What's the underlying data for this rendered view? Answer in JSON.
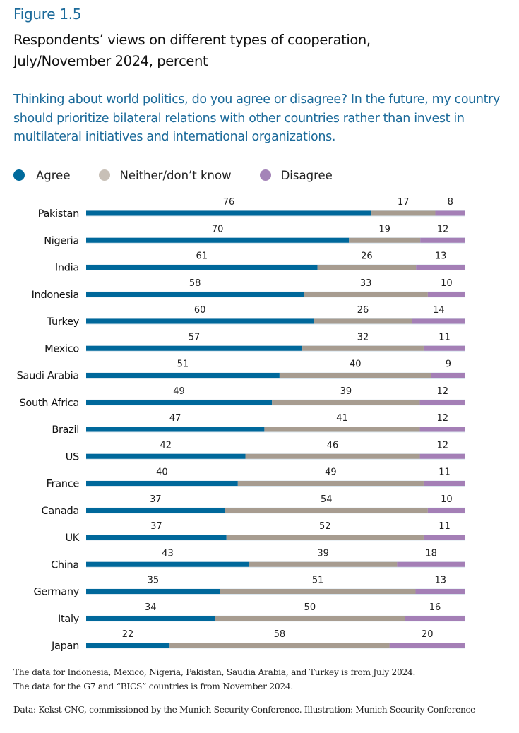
{
  "figure_label": "Figure 1.5",
  "title_line1": "Respondents’ views on different types of cooperation,",
  "title_line2": "July/November 2024, percent",
  "subtitle": "Thinking about world politics, do you agree or disagree? In the future, my country should prioritize bilateral relations with other countries rather than invest in multilateral initiatives and international organizations.",
  "notes_line1": "The data for Indonesia, Mexico, Nigeria, Pakistan, Saudia Arabia, and Turkey is from July 2024.",
  "notes_line2": "The data for the G7 and “BICS” countries is from November 2024.",
  "source": "Data: Kekst CNC, commissioned by the Munich Security Conference. Illustration: Munich Security Conference",
  "chart_data": {
    "type": "bar",
    "orientation": "horizontal",
    "stacked": true,
    "title": "Respondents’ views on different types of cooperation, July/November 2024, percent",
    "xlabel": "",
    "ylabel": "",
    "xlim": [
      0,
      100
    ],
    "grid": false,
    "legend_position": "top-left",
    "categories": [
      "Pakistan",
      "Nigeria",
      "India",
      "Indonesia",
      "Turkey",
      "Mexico",
      "Saudi Arabia",
      "South Africa",
      "Brazil",
      "US",
      "France",
      "Canada",
      "UK",
      "China",
      "Germany",
      "Italy",
      "Japan"
    ],
    "series": [
      {
        "name": "Agree",
        "color": "#00689b",
        "values": [
          76,
          70,
          61,
          58,
          60,
          57,
          51,
          49,
          47,
          42,
          40,
          37,
          37,
          43,
          35,
          34,
          22
        ]
      },
      {
        "name": "Neither/don’t know",
        "color": "#a79c90",
        "values": [
          17,
          19,
          26,
          33,
          26,
          32,
          40,
          39,
          41,
          46,
          49,
          54,
          52,
          39,
          51,
          50,
          58
        ]
      },
      {
        "name": "Disagree",
        "color": "#a47fb6",
        "values": [
          8,
          12,
          13,
          10,
          14,
          11,
          9,
          12,
          12,
          12,
          11,
          10,
          11,
          18,
          13,
          16,
          20
        ]
      }
    ],
    "legend_dot_colors": [
      "#006a9c",
      "#c8c0b7",
      "#a484b8"
    ]
  }
}
